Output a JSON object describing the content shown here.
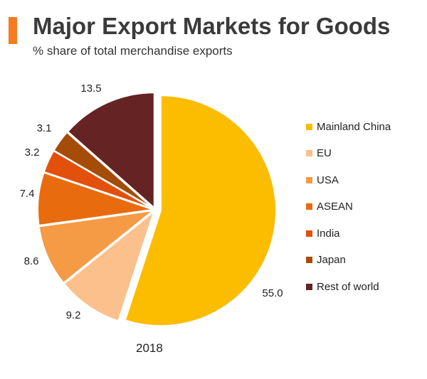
{
  "header": {
    "title": "Major Export Markets for Goods",
    "subtitle": "% share of total merchandise exports"
  },
  "chart_data": {
    "type": "pie",
    "title": "Major Export Markets for Goods",
    "subtitle": "% share of total merchandise exports",
    "caption": "2018",
    "legend_position": "right",
    "slices": [
      {
        "label": "Mainland China",
        "value": 55.0,
        "display": "55.0",
        "color": "#fcbc00"
      },
      {
        "label": "EU",
        "value": 9.2,
        "display": "9.2",
        "color": "#fbc08c"
      },
      {
        "label": "USA",
        "value": 8.6,
        "display": "8.6",
        "color": "#f59a45"
      },
      {
        "label": "ASEAN",
        "value": 7.4,
        "display": "7.4",
        "color": "#e86c0e"
      },
      {
        "label": "India",
        "value": 3.2,
        "display": "3.2",
        "color": "#e2500c"
      },
      {
        "label": "Japan",
        "value": 3.1,
        "display": "3.1",
        "color": "#a54c08"
      },
      {
        "label": "Rest of world",
        "value": 13.5,
        "display": "13.5",
        "color": "#652324"
      }
    ]
  }
}
